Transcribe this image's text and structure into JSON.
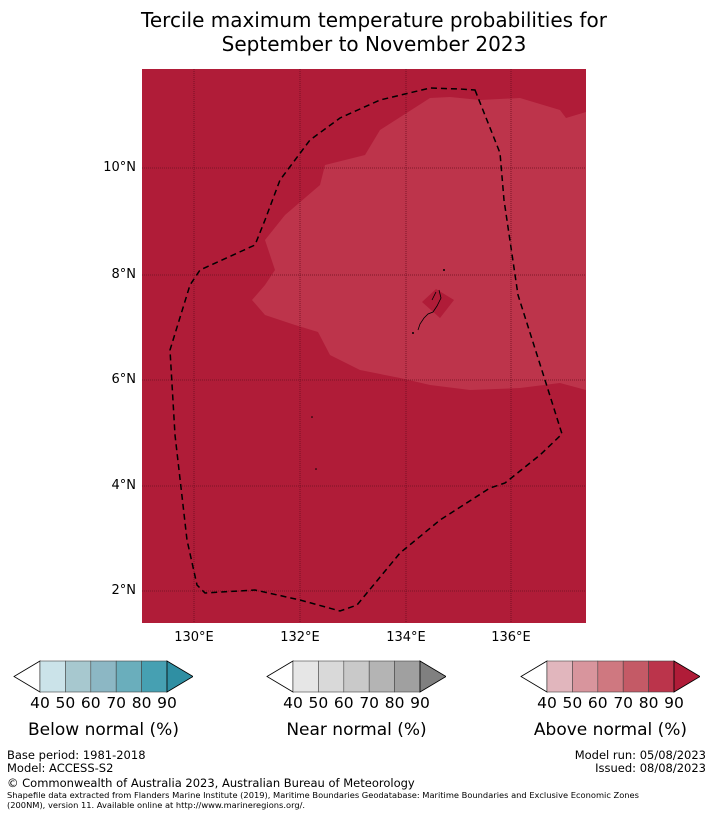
{
  "title_line1": "Tercile maximum temperature probabilities for",
  "title_line2": "September to November 2023",
  "map": {
    "y_ticks": [
      "10°N",
      "8°N",
      "6°N",
      "4°N",
      "2°N"
    ],
    "x_ticks": [
      "130°E",
      "132°E",
      "134°E",
      "136°E"
    ],
    "fill_colors": {
      "above_90": "#b01c38",
      "above_80_90": "#bd344b",
      "island_patch": "#b01c38"
    }
  },
  "colorbars": [
    {
      "label": "Below normal (%)",
      "ticks": [
        "40",
        "50",
        "60",
        "70",
        "80",
        "90"
      ],
      "colors": [
        "#ffffff",
        "#cbe3e9",
        "#a7c8cf",
        "#8cb7c4",
        "#6aaebc",
        "#46a0b2",
        "#2f8fa3"
      ]
    },
    {
      "label": "Near normal (%)",
      "ticks": [
        "40",
        "50",
        "60",
        "70",
        "80",
        "90"
      ],
      "colors": [
        "#ffffff",
        "#e6e6e6",
        "#d9d9d9",
        "#c9c9c9",
        "#b4b4b4",
        "#a0a0a0",
        "#808080"
      ]
    },
    {
      "label": "Above normal (%)",
      "ticks": [
        "40",
        "50",
        "60",
        "70",
        "80",
        "90"
      ],
      "colors": [
        "#ffffff",
        "#e1b6bd",
        "#d8959d",
        "#cf7880",
        "#c45a66",
        "#bb344b",
        "#b01c38"
      ]
    }
  ],
  "footer": {
    "base_period": "Base period: 1981-2018",
    "model": "Model: ACCESS-S2",
    "model_run": "Model run: 05/08/2023",
    "issued": "Issued: 08/08/2023",
    "copyright": "© Commonwealth of Australia 2023, Australian Bureau of Meteorology",
    "shapefile_line1": "Shapefile data extracted from Flanders Marine Institute (2019), Maritime Boundaries Geodatabase: Maritime Boundaries and Exclusive Economic Zones",
    "shapefile_line2": "(200NM), version 11. Available online at http://www.marineregions.org/."
  }
}
